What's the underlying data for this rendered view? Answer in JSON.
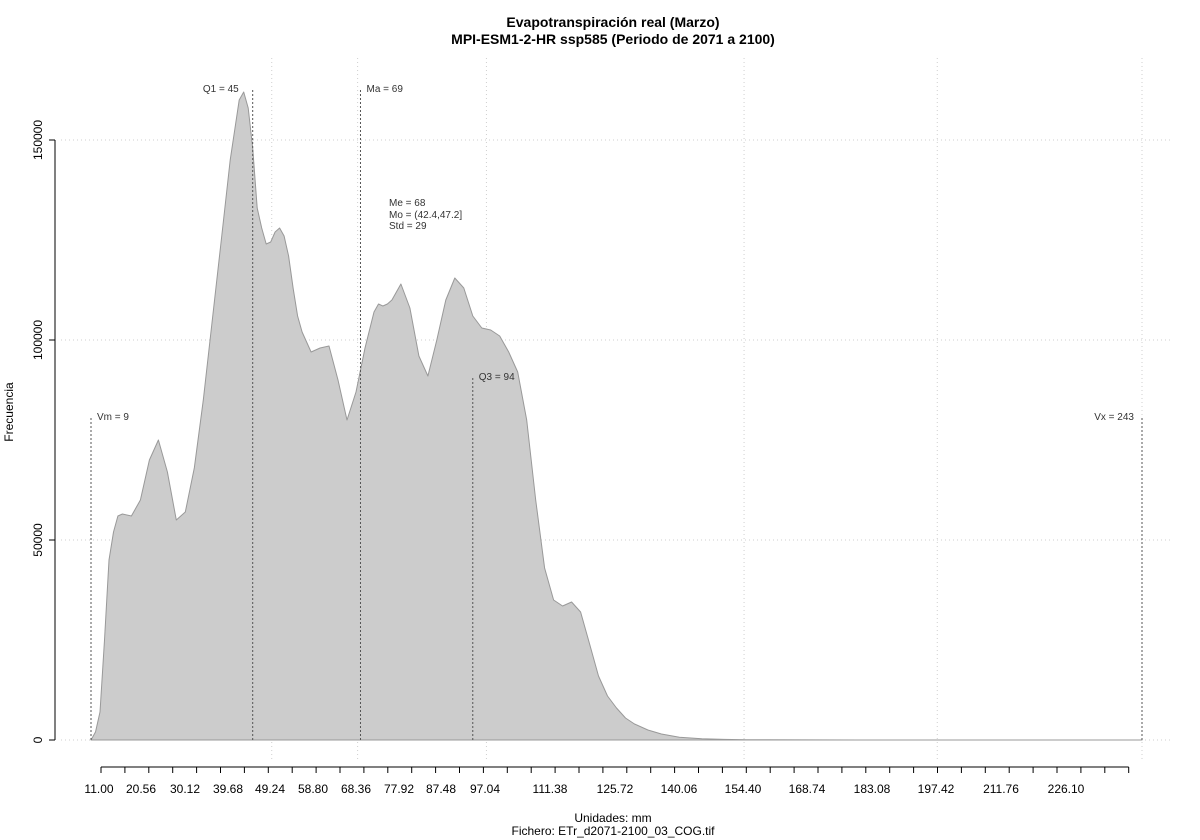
{
  "chart_data": {
    "type": "area",
    "title": "Evapotranspiración real (Marzo)",
    "subtitle": "MPI-ESM1-2-HR ssp585 (Periodo de 2071 a 2100)",
    "xlabel": "Unidades: mm",
    "caption": "Fichero: ETr_d2071-2100_03_COG.tif",
    "ylabel": "Frecuencia",
    "xlim": [
      9,
      243
    ],
    "ylim": [
      0,
      160000
    ],
    "grid": true,
    "fill_color": "#cccccc",
    "line_color": "#999999",
    "x_ticks": [
      "11.00",
      "20.56",
      "30.12",
      "39.68",
      "49.24",
      "58.80",
      "68.36",
      "77.92",
      "87.48",
      "97.04",
      "111.38",
      "125.72",
      "140.06",
      "154.40",
      "168.74",
      "183.08",
      "197.42",
      "211.76",
      "226.10"
    ],
    "y_ticks": [
      "0",
      "50000",
      "100000",
      "150000"
    ],
    "x": [
      9,
      10,
      11,
      12,
      13,
      14,
      15,
      16,
      18,
      20,
      22,
      24,
      26,
      28,
      30,
      32,
      34,
      36,
      38,
      40,
      42,
      43,
      44,
      45,
      46,
      47,
      48,
      49,
      50,
      51,
      52,
      53,
      54,
      55,
      56,
      58,
      60,
      62,
      64,
      66,
      68,
      70,
      72,
      73,
      74,
      75,
      76,
      78,
      80,
      82,
      84,
      86,
      88,
      90,
      92,
      94,
      96,
      98,
      100,
      102,
      104,
      106,
      108,
      110,
      112,
      114,
      116,
      118,
      120,
      122,
      124,
      126,
      128,
      130,
      133,
      136,
      140,
      145,
      150,
      155,
      160,
      170,
      180,
      190,
      200,
      210,
      220,
      230,
      240,
      243
    ],
    "values": [
      0,
      2000,
      7000,
      25000,
      45000,
      52000,
      56000,
      56500,
      56000,
      60000,
      70000,
      75000,
      67000,
      55000,
      57000,
      68000,
      85000,
      105000,
      125000,
      145000,
      160000,
      162000,
      158000,
      148000,
      133000,
      128000,
      124000,
      124500,
      127000,
      128000,
      126000,
      121000,
      113000,
      106000,
      102000,
      97000,
      98000,
      98500,
      90000,
      80000,
      87000,
      98000,
      107000,
      109000,
      108500,
      109000,
      110000,
      114000,
      108000,
      96000,
      91000,
      100000,
      110000,
      115500,
      113000,
      106000,
      103000,
      102500,
      101000,
      97000,
      92000,
      80000,
      60000,
      43000,
      35000,
      33500,
      34500,
      32000,
      24000,
      16000,
      11000,
      8000,
      5500,
      4000,
      2500,
      1500,
      700,
      300,
      150,
      80,
      40,
      20,
      10,
      5,
      3,
      2,
      1,
      1,
      0,
      0
    ],
    "annotations": [
      {
        "label": "Vm = 9",
        "x": 9,
        "y_top": 81000
      },
      {
        "label": "Q1 = 45",
        "x": 45,
        "y_top": 163000
      },
      {
        "label": "Ma = 69",
        "x": 69,
        "y_top": 163000
      },
      {
        "label": "Q3 = 94",
        "x": 94,
        "y_top": 91000
      },
      {
        "label": "Vx = 243",
        "x": 243,
        "y_top": 81000
      }
    ],
    "stats": [
      "Me = 68",
      "Mo = (42.4,47.2]",
      "Std = 29"
    ]
  }
}
